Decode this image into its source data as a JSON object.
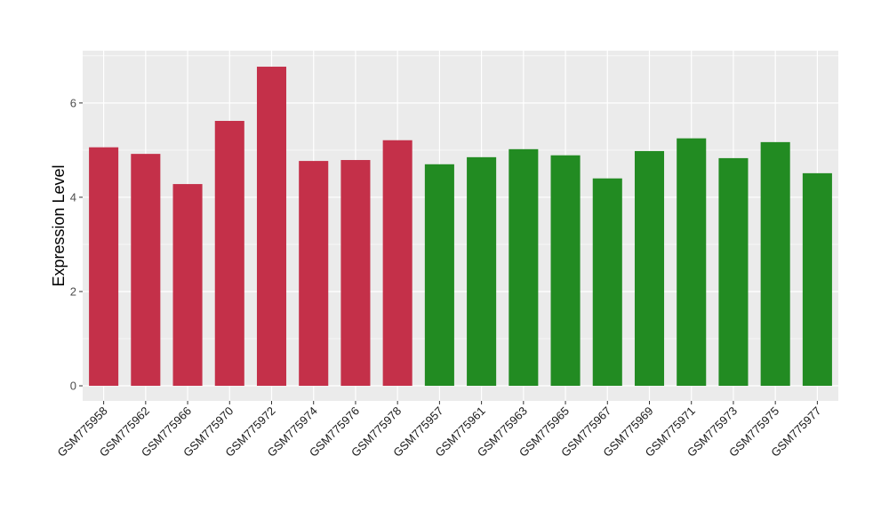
{
  "chart_data": {
    "type": "bar",
    "title": "",
    "xlabel": "",
    "ylabel": "Expression Level",
    "ylim": [
      -0.32,
      7.11
    ],
    "yticks": [
      0,
      2,
      4,
      6
    ],
    "grid": true,
    "categories": [
      "GSM775958",
      "GSM775962",
      "GSM775966",
      "GSM775970",
      "GSM775972",
      "GSM775974",
      "GSM775976",
      "GSM775978",
      "GSM775957",
      "GSM775961",
      "GSM775963",
      "GSM775965",
      "GSM775967",
      "GSM775969",
      "GSM775971",
      "GSM775973",
      "GSM775975",
      "GSM775977"
    ],
    "values": [
      5.06,
      4.92,
      4.28,
      5.62,
      6.77,
      4.77,
      4.79,
      5.21,
      4.7,
      4.85,
      5.02,
      4.89,
      4.4,
      4.98,
      5.25,
      4.83,
      5.17,
      4.51
    ],
    "bar_colors": [
      "#c43049",
      "#c43049",
      "#c43049",
      "#c43049",
      "#c43049",
      "#c43049",
      "#c43049",
      "#c43049",
      "#228b22",
      "#228b22",
      "#228b22",
      "#228b22",
      "#228b22",
      "#228b22",
      "#228b22",
      "#228b22",
      "#228b22",
      "#228b22"
    ],
    "panel_background": "#ebebeb"
  }
}
